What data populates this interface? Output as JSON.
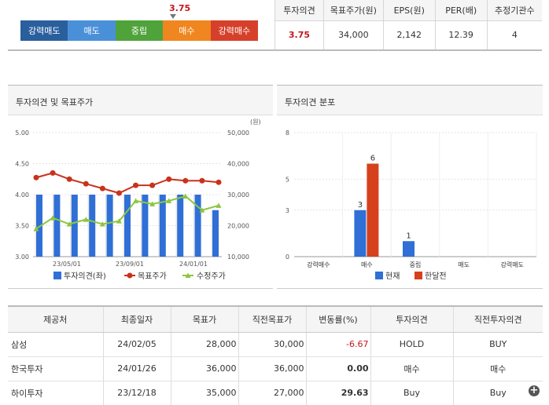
{
  "opinion": {
    "score": "3.75",
    "score_value": 3.75,
    "segments": [
      {
        "label": "강력매도",
        "color": "#2a5f9e"
      },
      {
        "label": "매도",
        "color": "#4a90d9"
      },
      {
        "label": "중립",
        "color": "#4fa33a"
      },
      {
        "label": "매수",
        "color": "#f0861f"
      },
      {
        "label": "강력매수",
        "color": "#d6402a"
      }
    ]
  },
  "summary": {
    "headers": [
      "투자의견",
      "목표주가(원)",
      "EPS(원)",
      "PER(배)",
      "추정기관수"
    ],
    "values": [
      "3.75",
      "34,000",
      "2,142",
      "12.39",
      "4"
    ]
  },
  "chart_left": {
    "title": "투자의견 및 목표주가",
    "chart_data": {
      "type": "bar",
      "y_left_ticks": [
        "5.00",
        "4.50",
        "4.00",
        "3.50",
        "3.00"
      ],
      "y_right_ticks": [
        "50,000",
        "40,000",
        "30,000",
        "20,000",
        "10,000"
      ],
      "y_right_unit": "(원)",
      "x_ticks": [
        "23/05/01",
        "23/09/01",
        "24/01/01"
      ],
      "ylim_left": [
        3.0,
        5.0
      ],
      "ylim_right": [
        10000,
        50000
      ],
      "bar_values": [
        4.0,
        4.0,
        4.0,
        4.0,
        4.0,
        4.0,
        4.0,
        4.0,
        4.0,
        4.0,
        3.75
      ],
      "series": [
        {
          "name": "목표주가",
          "color": "#c9321c",
          "values": [
            35500,
            37000,
            35000,
            33500,
            32000,
            30500,
            33000,
            33000,
            35000,
            34500,
            34500,
            34000
          ]
        },
        {
          "name": "수정주가",
          "color": "#8cc63f",
          "values": [
            19000,
            22500,
            20500,
            22000,
            20500,
            21500,
            28000,
            27000,
            28000,
            29500,
            25000,
            26500
          ]
        }
      ],
      "legend": [
        "투자의견(좌)",
        "목표주가",
        "수정주가"
      ],
      "bar_color": "#2f6fd6"
    }
  },
  "chart_right": {
    "title": "투자의견 분포",
    "chart_data": {
      "type": "bar",
      "y_ticks": [
        "8",
        "5",
        "3",
        "0"
      ],
      "ylim": [
        0,
        8
      ],
      "categories": [
        "강력매수",
        "매수",
        "중립",
        "매도",
        "강력매도"
      ],
      "series": [
        {
          "name": "현재",
          "color": "#2f6fd6",
          "values": [
            0,
            3,
            1,
            0,
            0
          ]
        },
        {
          "name": "한달전",
          "color": "#d6401c",
          "values": [
            0,
            6,
            0,
            0,
            0
          ]
        }
      ],
      "labels": [
        {
          "category": "매수",
          "series": "현재",
          "text": "3"
        },
        {
          "category": "매수",
          "series": "한달전",
          "text": "6"
        },
        {
          "category": "중립",
          "series": "현재",
          "text": "1"
        }
      ]
    }
  },
  "brokers": {
    "headers": [
      "제공처",
      "최종일자",
      "목표가",
      "직전목표가",
      "변동률(%)",
      "투자의견",
      "직전투자의견"
    ],
    "rows": [
      [
        "삼성",
        "24/02/05",
        "28,000",
        "30,000",
        "-6.67",
        "HOLD",
        "BUY"
      ],
      [
        "한국투자",
        "24/01/26",
        "36,000",
        "36,000",
        "0.00",
        "매수",
        "매수"
      ],
      [
        "하이투자",
        "23/12/18",
        "35,000",
        "27,000",
        "29.63",
        "Buy",
        "Buy"
      ]
    ],
    "more_icon": "plus-circle-icon",
    "more_label": "+"
  }
}
